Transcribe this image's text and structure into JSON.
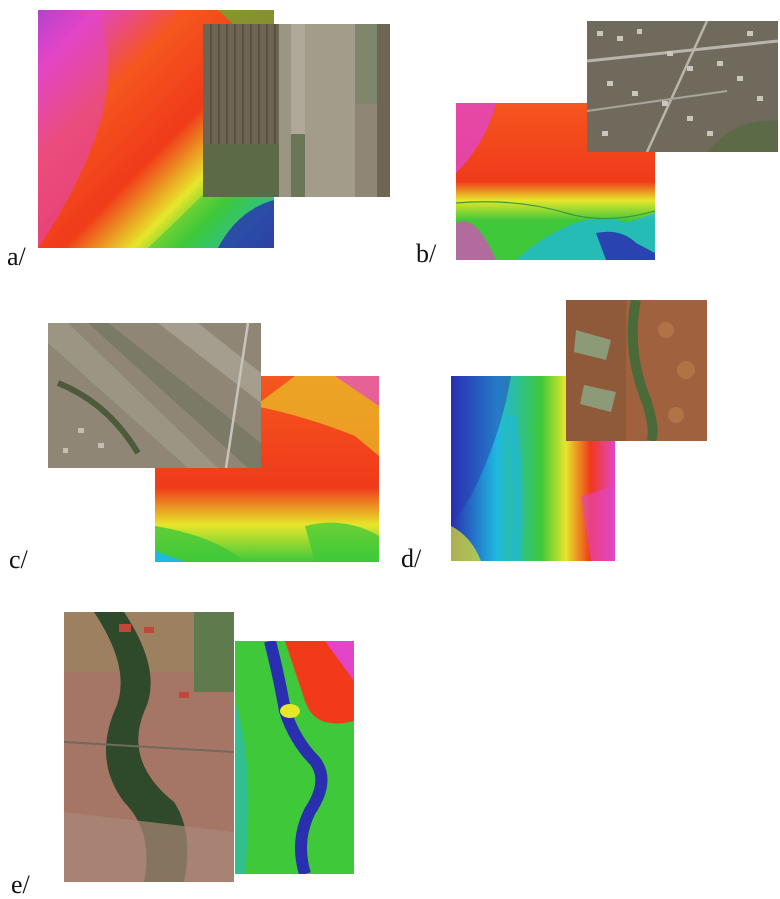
{
  "panels": [
    {
      "id": "a",
      "label": "a/",
      "images": [
        {
          "kind": "elevation-model",
          "icon": "dem-heatmap"
        },
        {
          "kind": "aerial-photo",
          "icon": "farmland-photo"
        }
      ]
    },
    {
      "id": "b",
      "label": "b/",
      "images": [
        {
          "kind": "aerial-photo",
          "icon": "village-photo"
        },
        {
          "kind": "elevation-model",
          "icon": "dem-heatmap"
        }
      ]
    },
    {
      "id": "c",
      "label": "c/",
      "images": [
        {
          "kind": "aerial-photo",
          "icon": "fields-road-photo"
        },
        {
          "kind": "elevation-model",
          "icon": "dem-heatmap"
        }
      ]
    },
    {
      "id": "d",
      "label": "d/",
      "images": [
        {
          "kind": "aerial-photo",
          "icon": "forest-photo"
        },
        {
          "kind": "elevation-model",
          "icon": "dem-heatmap"
        }
      ]
    },
    {
      "id": "e",
      "label": "e/",
      "images": [
        {
          "kind": "aerial-photo",
          "icon": "river-valley-photo"
        },
        {
          "kind": "elevation-model",
          "icon": "dem-heatmap"
        }
      ]
    }
  ],
  "colors": {
    "dem_low": "#2a2fb0",
    "dem_cyan": "#1fb8e0",
    "dem_green": "#3ec83a",
    "dem_yellow": "#e6e62a",
    "dem_orange": "#f5561e",
    "dem_red": "#f03a1a",
    "dem_high": "#e245c8",
    "photo_soil": "#8f8676",
    "photo_veg": "#5d6a48"
  }
}
